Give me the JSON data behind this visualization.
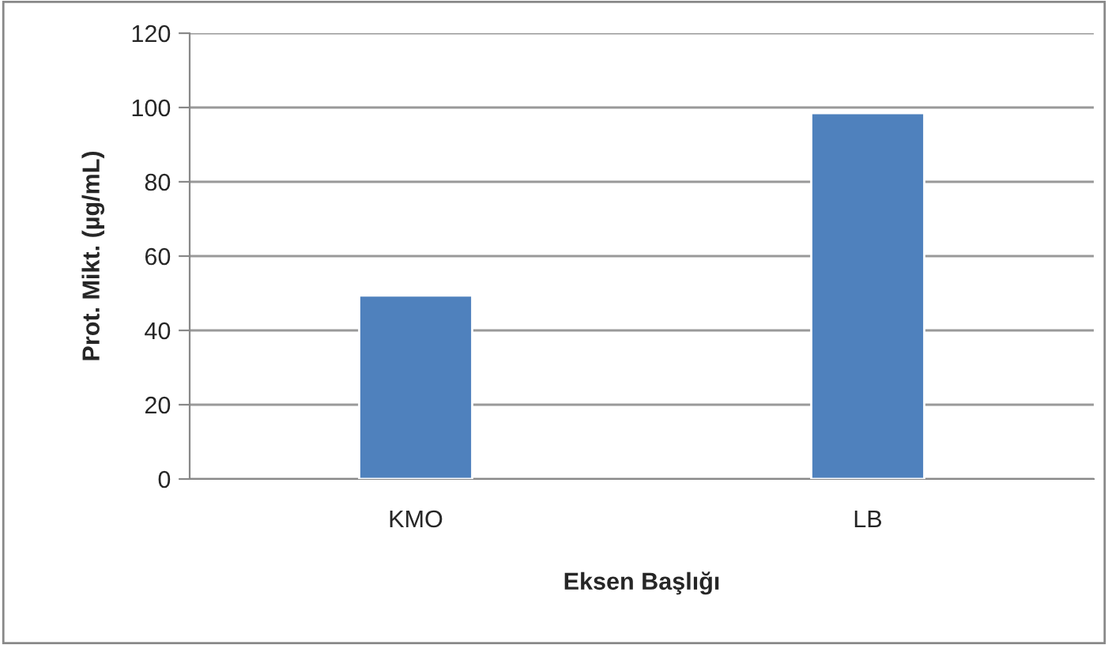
{
  "chart_data": {
    "type": "bar",
    "xlabel": "Eksen Başlığı",
    "ylabel": "Prot. Mikt. (µg/mL)",
    "categories": [
      "KMO",
      "LB"
    ],
    "values": [
      49.4,
      98.5
    ],
    "color": "#4f81bd",
    "ylim": [
      0,
      120
    ],
    "yticks": [
      0,
      20,
      40,
      60,
      80,
      100,
      120
    ],
    "grid": "y",
    "legend": false
  }
}
